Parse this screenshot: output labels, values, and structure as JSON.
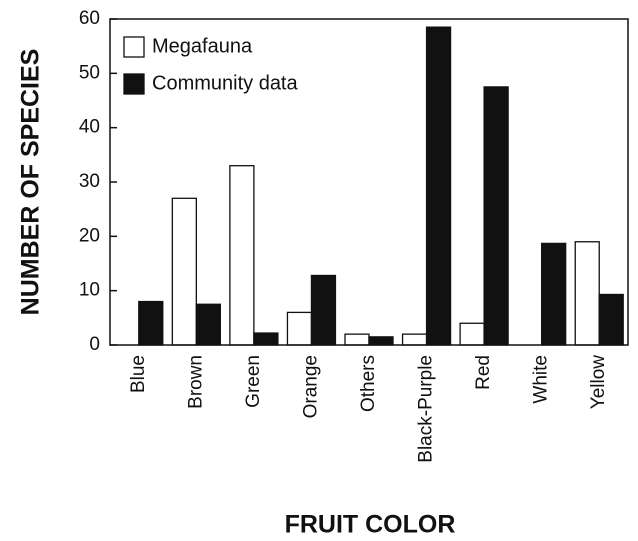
{
  "chart_data": {
    "type": "bar",
    "xlabel": "FRUIT COLOR",
    "ylabel": "NUMBER OF SPECIES",
    "categories": [
      "Blue",
      "Brown",
      "Green",
      "Orange",
      "Others",
      "Black-Purple",
      "Red",
      "White",
      "Yellow"
    ],
    "series": [
      {
        "name": "Megafauna",
        "color": "#ffffff",
        "values": [
          0,
          27,
          33,
          6,
          2,
          2,
          4,
          0,
          19
        ]
      },
      {
        "name": "Community data",
        "color": "#111111",
        "values": [
          8,
          7.5,
          2.2,
          12.8,
          1.5,
          58.5,
          47.5,
          18.7,
          9.3
        ]
      }
    ],
    "ylim": [
      0,
      60
    ],
    "yticks": [
      0,
      10,
      20,
      30,
      40,
      50,
      60
    ],
    "grid": false,
    "legend": "upper left"
  }
}
